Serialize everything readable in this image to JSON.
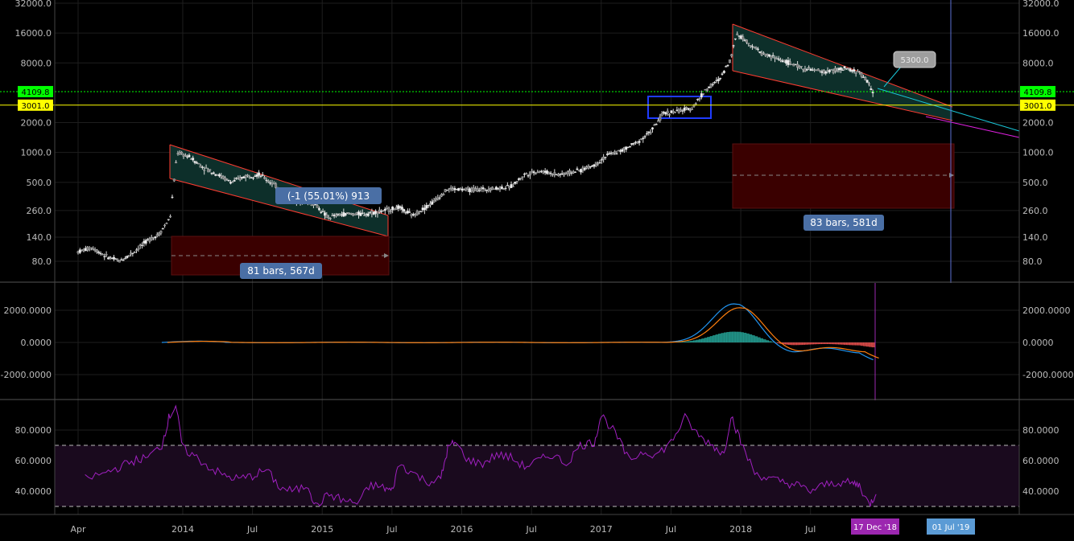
{
  "chart_data": [
    {
      "type": "candlestick",
      "scale": "log",
      "y_ticks": [
        "32000.0",
        "16000.0",
        "8000.0",
        "2000.0",
        "1000.0",
        "500.0",
        "260.0",
        "140.0",
        "80.0"
      ],
      "y_tick_values": [
        32000,
        16000,
        8000,
        2000,
        1000,
        500,
        260,
        140,
        80
      ],
      "horizontal_lines": [
        {
          "value": 4109.8,
          "label": "4109.8",
          "color": "#00ff00",
          "style": "dotted"
        },
        {
          "value": 3001.0,
          "label": "3001.0",
          "color": "#ffff00",
          "style": "solid"
        }
      ],
      "price_series_x": [
        2013.25,
        2013.35,
        2013.45,
        2013.55,
        2013.65,
        2013.75,
        2013.83,
        2013.91,
        2013.96,
        2014.05,
        2014.15,
        2014.25,
        2014.35,
        2014.45,
        2014.55,
        2014.65,
        2014.75,
        2014.85,
        2014.95,
        2015.04,
        2015.15,
        2015.3,
        2015.45,
        2015.55,
        2015.65,
        2015.8,
        2015.9,
        2016.05,
        2016.2,
        2016.35,
        2016.45,
        2016.55,
        2016.7,
        2016.85,
        2016.95,
        2017.05,
        2017.15,
        2017.25,
        2017.35,
        2017.45,
        2017.55,
        2017.65,
        2017.75,
        2017.85,
        2017.93,
        2017.97,
        2018.05,
        2018.15,
        2018.3,
        2018.45,
        2018.6,
        2018.75,
        2018.85,
        2018.9,
        2018.96
      ],
      "price_series_y": [
        100,
        110,
        90,
        80,
        100,
        130,
        150,
        220,
        1000,
        900,
        700,
        600,
        500,
        580,
        600,
        480,
        380,
        320,
        300,
        220,
        240,
        240,
        260,
        280,
        230,
        320,
        430,
        420,
        430,
        450,
        600,
        650,
        600,
        660,
        750,
        950,
        1050,
        1250,
        1600,
        2500,
        2600,
        2800,
        4300,
        5500,
        9000,
        16000,
        13000,
        10000,
        8500,
        7000,
        6500,
        7000,
        6400,
        5400,
        3800
      ],
      "annotations": [
        {
          "text": "81 bars, 567d"
        },
        {
          "text": "83 bars, 581d"
        },
        {
          "text": "(-1 (55.01%) 913"
        },
        {
          "text": "5300.0"
        }
      ]
    },
    {
      "type": "macd",
      "y_ticks": [
        "2000.0000",
        "0.0000",
        "-2000.0000"
      ],
      "y_tick_values": [
        2000,
        0,
        -2000
      ]
    },
    {
      "type": "rsi",
      "y_ticks": [
        "80.0000",
        "60.0000",
        "40.0000"
      ],
      "y_tick_values": [
        80,
        60,
        40
      ],
      "band": [
        30,
        70
      ],
      "x": [
        2013.3,
        2013.45,
        2013.55,
        2013.65,
        2013.75,
        2013.85,
        2013.9,
        2013.95,
        2014.0,
        2014.1,
        2014.2,
        2014.3,
        2014.4,
        2014.5,
        2014.6,
        2014.7,
        2014.8,
        2014.9,
        2014.95,
        2015.05,
        2015.15,
        2015.25,
        2015.35,
        2015.45,
        2015.5,
        2015.55,
        2015.65,
        2015.75,
        2015.85,
        2015.9,
        2015.95,
        2016.05,
        2016.15,
        2016.25,
        2016.35,
        2016.45,
        2016.55,
        2016.65,
        2016.75,
        2016.85,
        2016.95,
        2017.0,
        2017.1,
        2017.2,
        2017.3,
        2017.4,
        2017.5,
        2017.6,
        2017.7,
        2017.8,
        2017.88,
        2017.93,
        2018.0,
        2018.1,
        2018.2,
        2018.3,
        2018.4,
        2018.5,
        2018.6,
        2018.7,
        2018.8,
        2018.85,
        2018.92,
        2018.97
      ],
      "y": [
        48,
        52,
        56,
        60,
        62,
        70,
        88,
        96,
        68,
        62,
        55,
        50,
        48,
        50,
        54,
        42,
        40,
        44,
        30,
        38,
        34,
        32,
        44,
        42,
        40,
        58,
        52,
        46,
        48,
        68,
        72,
        60,
        58,
        64,
        62,
        56,
        60,
        64,
        58,
        70,
        72,
        90,
        78,
        60,
        66,
        64,
        72,
        88,
        76,
        70,
        64,
        90,
        72,
        52,
        48,
        46,
        44,
        40,
        44,
        46,
        45,
        44,
        31,
        38
      ]
    }
  ],
  "x_axis_ticks": [
    "Apr",
    "2014",
    "Jul",
    "2015",
    "Jul",
    "2016",
    "Jul",
    "2017",
    "Jul",
    "2018",
    "Jul"
  ],
  "x_axis_tick_values": [
    2013.25,
    2014,
    2014.5,
    2015,
    2015.5,
    2016,
    2016.5,
    2017,
    2017.5,
    2018,
    2018.5
  ],
  "x_axis_badges": [
    {
      "text": "17 Dec '18",
      "color": "#9c27b0"
    },
    {
      "text": "01 Jul '19",
      "color": "#5b9bd5"
    }
  ],
  "colors": {
    "background": "#000000",
    "grid": "#1e1e1e",
    "channel_fill": "#0d2f2a",
    "channel_line": "#ff3b30",
    "range_box": "#3a0000",
    "label_bg": "#4a6fa5",
    "macd": "#2196f3",
    "signal": "#ff7f0e",
    "hist_up": "#26a69a",
    "hist_down": "#ef5350",
    "rsi_line": "#a020c0",
    "rsi_band": "#1a0a1e"
  }
}
